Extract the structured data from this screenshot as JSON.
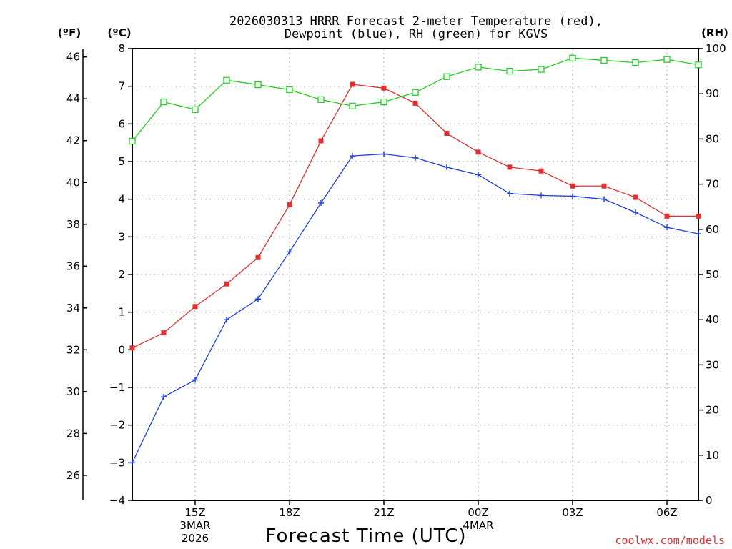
{
  "chart_data": {
    "type": "line",
    "title_line1": "2026030313 HRRR Forecast 2-meter Temperature (red),",
    "title_line2": "Dewpoint (blue), RH (green) for KGVS",
    "xlabel": "Forecast Time (UTC)",
    "credit": "coolwx.com/models",
    "left_axis_unit": "(ºF)",
    "inner_axis_unit": "(ºC)",
    "right_axis_unit": "(RH)",
    "x_hours": [
      13,
      14,
      15,
      16,
      17,
      18,
      19,
      20,
      21,
      22,
      23,
      24,
      25,
      26,
      27,
      28,
      29,
      30,
      31
    ],
    "x_range": [
      13,
      31
    ],
    "x_ticks": [
      {
        "hour": 15,
        "label": "15Z",
        "sub1": "3MAR",
        "sub2": "2026"
      },
      {
        "hour": 18,
        "label": "18Z",
        "sub1": "",
        "sub2": ""
      },
      {
        "hour": 21,
        "label": "21Z",
        "sub1": "",
        "sub2": ""
      },
      {
        "hour": 24,
        "label": "00Z",
        "sub1": "4MAR",
        "sub2": ""
      },
      {
        "hour": 27,
        "label": "03Z",
        "sub1": "",
        "sub2": ""
      },
      {
        "hour": 30,
        "label": "06Z",
        "sub1": "",
        "sub2": ""
      }
    ],
    "celsius_range": [
      -4,
      8
    ],
    "celsius_ticks": [
      "-4",
      "-3",
      "-2",
      "-1",
      "0",
      "1",
      "2",
      "3",
      "4",
      "5",
      "6",
      "7",
      "8"
    ],
    "fahrenheit_ticks": [
      "26",
      "28",
      "30",
      "32",
      "34",
      "36",
      "38",
      "40",
      "42",
      "44",
      "46"
    ],
    "rh_range": [
      0,
      100
    ],
    "rh_ticks": [
      "0",
      "10",
      "20",
      "30",
      "40",
      "50",
      "60",
      "70",
      "80",
      "90",
      "100"
    ],
    "series": [
      {
        "name": "Temperature",
        "unit": "C",
        "color": "#e03030",
        "marker": "filled-square",
        "values": [
          0.05,
          0.45,
          1.15,
          1.75,
          2.45,
          3.85,
          5.55,
          7.05,
          6.95,
          6.55,
          5.75,
          5.25,
          4.85,
          4.75,
          4.35,
          4.35,
          4.05,
          3.55,
          3.55
        ]
      },
      {
        "name": "Dewpoint",
        "unit": "C",
        "color": "#2040e0",
        "marker": "plus",
        "values": [
          -3.0,
          -1.25,
          -0.8,
          0.8,
          1.35,
          2.6,
          3.9,
          5.15,
          5.2,
          5.1,
          4.85,
          4.65,
          4.15,
          4.1,
          4.08,
          4.0,
          3.65,
          3.25,
          3.08
        ]
      },
      {
        "name": "RH",
        "unit": "%",
        "color": "#20d020",
        "marker": "open-square",
        "values": [
          79.5,
          88.2,
          86.5,
          93.0,
          92.0,
          90.9,
          88.7,
          87.3,
          88.2,
          90.3,
          93.8,
          95.9,
          95.0,
          95.4,
          97.9,
          97.4,
          96.9,
          97.6,
          96.4
        ]
      }
    ]
  }
}
